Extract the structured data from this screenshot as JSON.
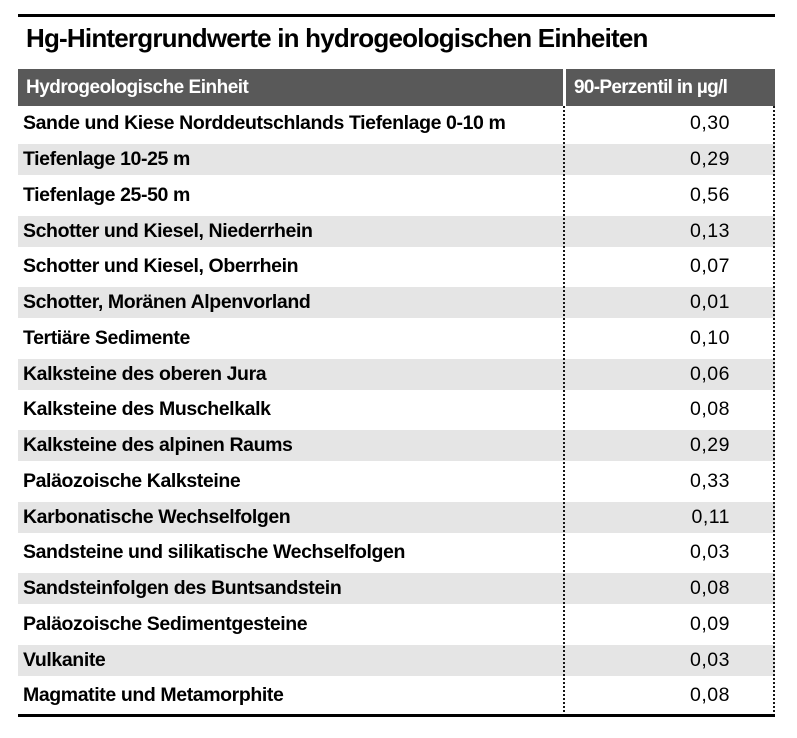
{
  "title": "Hg-Hintergrundwerte in hydrogeologischen Einheiten",
  "table": {
    "columns": [
      "Hydrogeologische Einheit",
      "90-Perzentil in µg/l"
    ],
    "rows": [
      {
        "einheit": "Sande und Kiese Norddeutschlands Tiefenlage 0-10 m",
        "wert": "0,30"
      },
      {
        "einheit": "Tiefenlage 10-25 m",
        "wert": "0,29"
      },
      {
        "einheit": "Tiefenlage 25-50 m",
        "wert": "0,56"
      },
      {
        "einheit": "Schotter und Kiesel, Niederrhein",
        "wert": "0,13"
      },
      {
        "einheit": "Schotter und Kiesel, Oberrhein",
        "wert": "0,07"
      },
      {
        "einheit": "Schotter, Moränen Alpenvorland",
        "wert": "0,01"
      },
      {
        "einheit": "Tertiäre Sedimente",
        "wert": "0,10"
      },
      {
        "einheit": "Kalksteine des oberen Jura",
        "wert": "0,06"
      },
      {
        "einheit": "Kalksteine des Muschelkalk",
        "wert": "0,08"
      },
      {
        "einheit": "Kalksteine des alpinen Raums",
        "wert": "0,29"
      },
      {
        "einheit": "Paläozoische Kalksteine",
        "wert": "0,33"
      },
      {
        "einheit": "Karbonatische Wechselfolgen",
        "wert": "0,11"
      },
      {
        "einheit": "Sandsteine und silikatische Wechselfolgen",
        "wert": "0,03"
      },
      {
        "einheit": "Sandsteinfolgen des Buntsandstein",
        "wert": "0,08"
      },
      {
        "einheit": "Paläozoische Sedimentgesteine",
        "wert": "0,09"
      },
      {
        "einheit": "Vulkanite",
        "wert": "0,03"
      },
      {
        "einheit": "Magmatite und Metamorphite",
        "wert": "0,08"
      }
    ]
  },
  "chart_data": {
    "type": "table",
    "title": "Hg-Hintergrundwerte in hydrogeologischen Einheiten",
    "columns": [
      "Hydrogeologische Einheit",
      "90-Perzentil in µg/l"
    ],
    "categories": [
      "Sande und Kiese Norddeutschlands Tiefenlage 0-10 m",
      "Tiefenlage 10-25 m",
      "Tiefenlage 25-50 m",
      "Schotter und Kiesel, Niederrhein",
      "Schotter und Kiesel, Oberrhein",
      "Schotter, Moränen Alpenvorland",
      "Tertiäre Sedimente",
      "Kalksteine des oberen Jura",
      "Kalksteine des Muschelkalk",
      "Kalksteine des alpinen Raums",
      "Paläozoische Kalksteine",
      "Karbonatische Wechselfolgen",
      "Sandsteine und silikatische Wechselfolgen",
      "Sandsteinfolgen des Buntsandstein",
      "Paläozoische Sedimentgesteine",
      "Vulkanite",
      "Magmatite und Metamorphite"
    ],
    "values": [
      0.3,
      0.29,
      0.56,
      0.13,
      0.07,
      0.01,
      0.1,
      0.06,
      0.08,
      0.29,
      0.33,
      0.11,
      0.03,
      0.08,
      0.09,
      0.03,
      0.08
    ],
    "unit": "µg/l",
    "value_label": "90-Perzentil in µg/l"
  },
  "colors": {
    "header_bg": "#595959",
    "header_text": "#ffffff",
    "stripe": "#e5e5e5",
    "rule": "#000000",
    "text": "#000000"
  }
}
